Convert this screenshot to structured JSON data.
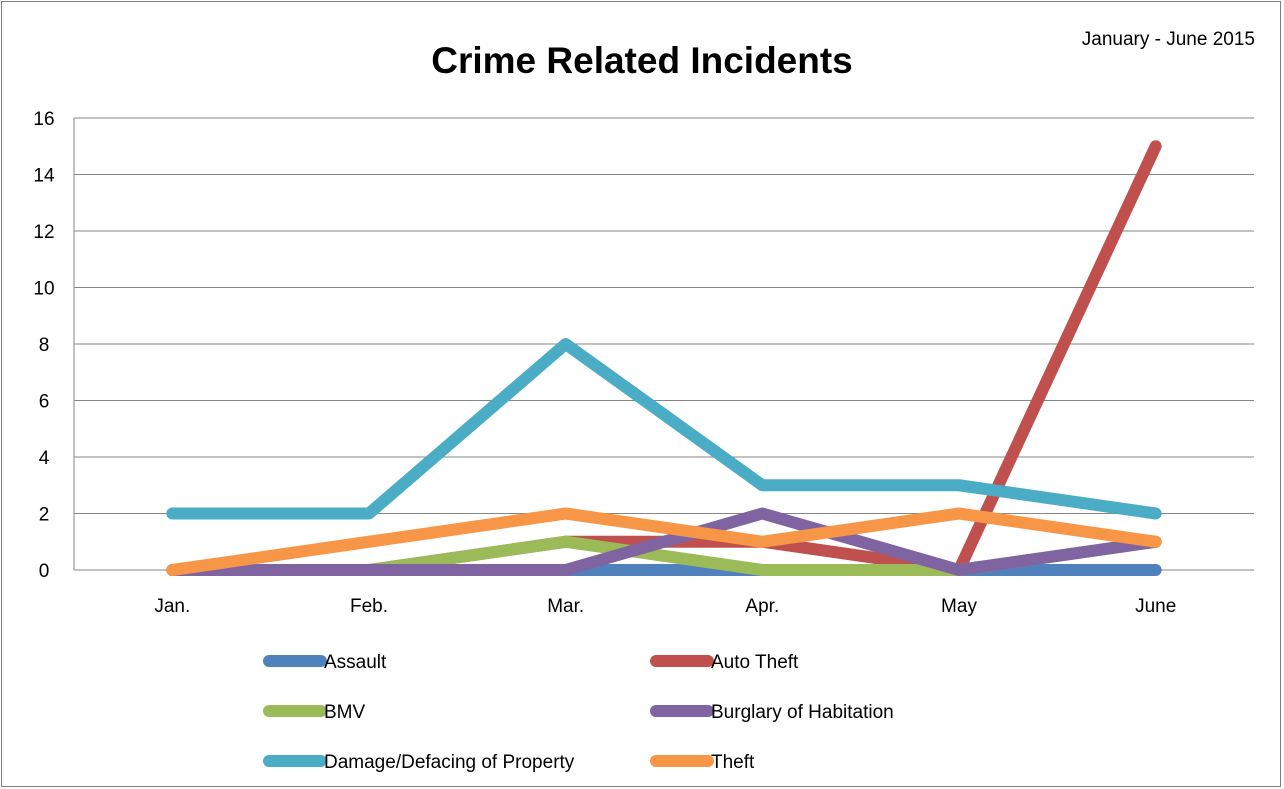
{
  "chart_data": {
    "type": "line",
    "title": "Crime Related Incidents",
    "subtitle": "January  - June 2015",
    "categories": [
      "Jan.",
      "Feb.",
      "Mar.",
      "Apr.",
      "May",
      "June"
    ],
    "ylim": [
      0,
      16
    ],
    "yticks": [
      "0",
      "2",
      "4",
      "6",
      "8",
      "10",
      "12",
      "14",
      "16"
    ],
    "grid": true,
    "legend_position": "bottom",
    "series": [
      {
        "name": "Assault",
        "color": "#4f81bd",
        "values": [
          0,
          0,
          0,
          0,
          0,
          0
        ]
      },
      {
        "name": "Auto Theft",
        "color": "#c0504d",
        "values": [
          0,
          0,
          1,
          1,
          0,
          15
        ]
      },
      {
        "name": "BMV",
        "color": "#9bbb59",
        "values": [
          0,
          0,
          1,
          0,
          0,
          1
        ]
      },
      {
        "name": "Burglary of Habitation",
        "color": "#8064a2",
        "values": [
          0,
          0,
          0,
          2,
          0,
          1
        ]
      },
      {
        "name": "Damage/Defacing of Property",
        "color": "#4bacc6",
        "values": [
          2,
          2,
          8,
          3,
          3,
          2
        ]
      },
      {
        "name": "Theft",
        "color": "#f79646",
        "values": [
          0,
          1,
          2,
          1,
          2,
          1
        ]
      }
    ]
  }
}
